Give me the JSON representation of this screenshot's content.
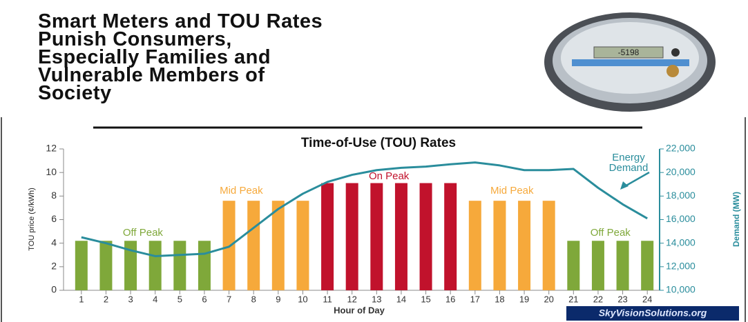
{
  "headline": [
    "Smart Meters and TOU Rates",
    "Punish Consumers,",
    "Especially Families and",
    "Vulnerable Members of",
    "Society"
  ],
  "meter_reading": "-5198",
  "watermark": "SkyVisionSolutions.org",
  "chart_data": {
    "type": "bar",
    "title": "Time-of-Use (TOU) Rates",
    "x_label": "Hour of Day",
    "y_label": "TOU price (¢/kWh)",
    "y2_label": "Demand (MW)",
    "categories": [
      "1",
      "2",
      "3",
      "4",
      "5",
      "6",
      "7",
      "8",
      "9",
      "10",
      "11",
      "12",
      "13",
      "14",
      "15",
      "16",
      "17",
      "18",
      "19",
      "20",
      "21",
      "22",
      "23",
      "24"
    ],
    "series": [
      {
        "type": "bar",
        "values": [
          4.2,
          4.2,
          4.2,
          4.2,
          4.2,
          4.2,
          7.6,
          7.6,
          7.6,
          7.6,
          9.1,
          9.1,
          9.1,
          9.1,
          9.1,
          9.1,
          7.6,
          7.6,
          7.6,
          7.6,
          4.2,
          4.2,
          4.2,
          4.2
        ],
        "colors": [
          "#7fa83a",
          "#7fa83a",
          "#7fa83a",
          "#7fa83a",
          "#7fa83a",
          "#7fa83a",
          "#f6a93b",
          "#f6a93b",
          "#f6a93b",
          "#f6a93b",
          "#c1122c",
          "#c1122c",
          "#c1122c",
          "#c1122c",
          "#c1122c",
          "#c1122c",
          "#f6a93b",
          "#f6a93b",
          "#f6a93b",
          "#f6a93b",
          "#7fa83a",
          "#7fa83a",
          "#7fa83a",
          "#7fa83a"
        ]
      },
      {
        "type": "line",
        "name": "Energy Demand",
        "color": "#2a8d9c",
        "axis": "y2",
        "values": [
          14500,
          14000,
          13400,
          12900,
          13000,
          13100,
          13700,
          15300,
          16900,
          18200,
          19200,
          19800,
          20200,
          20400,
          20500,
          20700,
          20850,
          20600,
          20200,
          20200,
          20300,
          18700,
          17300,
          16100
        ]
      }
    ],
    "annotations": [
      {
        "text": "Off Peak",
        "color": "#7fa83a"
      },
      {
        "text": "Mid Peak",
        "color": "#f6a93b"
      },
      {
        "text": "On Peak",
        "color": "#c1122c"
      },
      {
        "text": "Mid Peak",
        "color": "#f6a93b"
      },
      {
        "text": "Off Peak",
        "color": "#7fa83a"
      }
    ],
    "ylim": [
      0,
      12
    ],
    "yticks": [
      0,
      2,
      4,
      6,
      8,
      10,
      12
    ],
    "y2lim": [
      10000,
      22000
    ],
    "y2ticks": [
      {
        "value": 10000,
        "label": "10,000"
      },
      {
        "value": 12000,
        "label": "12,000"
      },
      {
        "value": 14000,
        "label": "14,000"
      },
      {
        "value": 16000,
        "label": "16,000"
      },
      {
        "value": 18000,
        "label": "18,000"
      },
      {
        "value": 20000,
        "label": "20,000"
      },
      {
        "value": 22000,
        "label": "22,000"
      }
    ]
  }
}
